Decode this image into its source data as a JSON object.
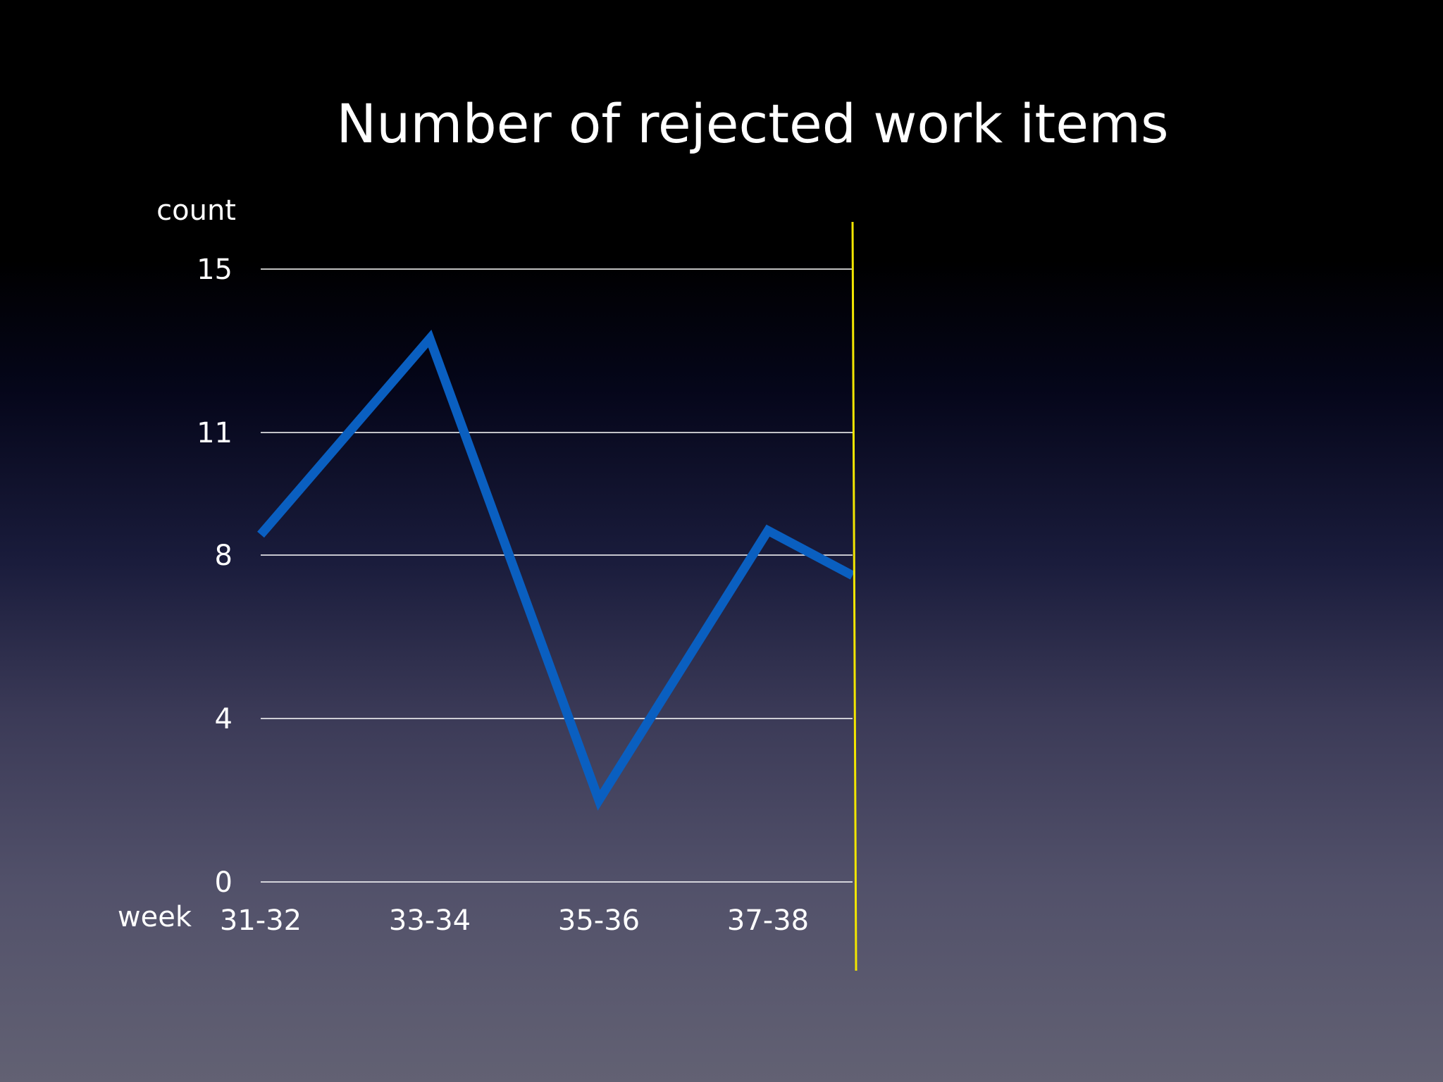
{
  "chart_data": {
    "type": "line",
    "title": "Number of rejected work items",
    "ylabel": "count",
    "xlabel": "week",
    "categories": [
      "31-32",
      "33-34",
      "35-36",
      "37-38"
    ],
    "x": [
      0,
      1,
      2,
      3,
      3.5
    ],
    "series": [
      {
        "values": [
          8.5,
          13.3,
          2.0,
          8.6,
          7.5
        ]
      }
    ],
    "yticks": [
      0,
      4,
      8,
      11,
      15
    ],
    "ylim": [
      0,
      15
    ],
    "grid": true,
    "colors": {
      "line": "#0a5fc0",
      "grid": "#ffffff",
      "marker_line": "#f2e600",
      "text": "#ffffff"
    }
  }
}
